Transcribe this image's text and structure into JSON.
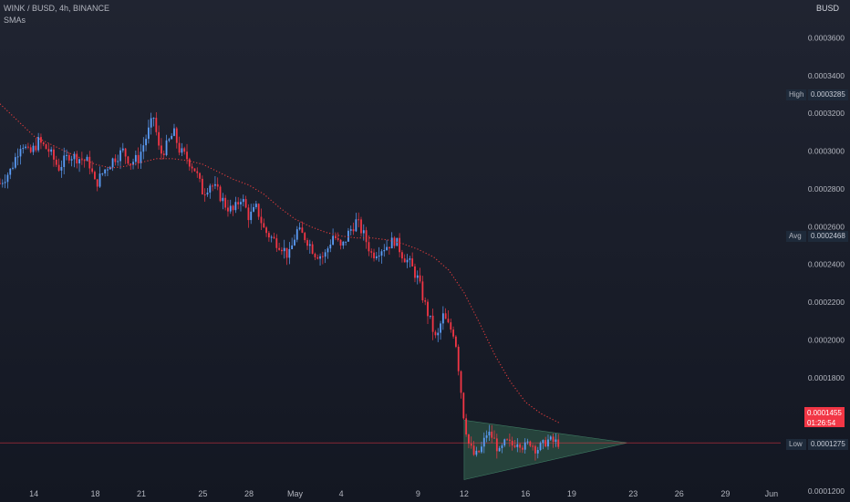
{
  "header": {
    "title": "WINK / BUSD, 4h, BINANCE",
    "indicator": "SMAs"
  },
  "currency": "BUSD",
  "colors": {
    "up": "#5b9cf6",
    "down": "#f23645",
    "sma": "#e03c3c",
    "triangle_fill": "#2f5a4a",
    "price_line": "#f23645",
    "axis_text": "#b2b5be"
  },
  "stats": {
    "high_label": "High",
    "high_value": "0.0003285",
    "avg_label": "Avg",
    "avg_value": "0.0002468",
    "low_label": "Low",
    "low_value": "0.0001275",
    "last_price": "0.0001455",
    "countdown": "01:26:54"
  },
  "chart_data": {
    "type": "candlestick",
    "y_ticks": [
      "0.0003600",
      "0.0003400",
      "0.0003200",
      "0.0003000",
      "0.0002800",
      "0.0002600",
      "0.0002400",
      "0.0002200",
      "0.0002000",
      "0.0001800",
      "0.0001600",
      "0.0001200"
    ],
    "ylim": [
      0.000119,
      0.00038
    ],
    "x_ticks": [
      {
        "label": "14",
        "x": 0
      },
      {
        "label": "18",
        "x": 4
      },
      {
        "label": "21",
        "x": 7
      },
      {
        "label": "25",
        "x": 11
      },
      {
        "label": "28",
        "x": 14
      },
      {
        "label": "May",
        "x": 17
      },
      {
        "label": "4",
        "x": 20
      },
      {
        "label": "9",
        "x": 25
      },
      {
        "label": "12",
        "x": 28
      },
      {
        "label": "16",
        "x": 32
      },
      {
        "label": "19",
        "x": 35
      },
      {
        "label": "23",
        "x": 39
      },
      {
        "label": "26",
        "x": 42
      },
      {
        "label": "29",
        "x": 45
      },
      {
        "label": "Jun",
        "x": 48
      }
    ],
    "xlim": [
      -2.2,
      48.6
    ],
    "close_path": [
      [
        -2.2,
        0.000283
      ],
      [
        -1.5,
        0.00029
      ],
      [
        -0.8,
        0.000305
      ],
      [
        -0.3,
        0.000298
      ],
      [
        0.3,
        0.000305
      ],
      [
        1,
        0.0003
      ],
      [
        1.6,
        0.000291
      ],
      [
        2.3,
        0.000298
      ],
      [
        3,
        0.000296
      ],
      [
        3.6,
        0.000294
      ],
      [
        4.0,
        0.000282
      ],
      [
        4.6,
        0.00029
      ],
      [
        5.2,
        0.000296
      ],
      [
        5.8,
        0.0003
      ],
      [
        6.3,
        0.000294
      ],
      [
        6.8,
        0.000296
      ],
      [
        7.3,
        0.000307
      ],
      [
        7.8,
        0.000318
      ],
      [
        8.2,
        0.000298
      ],
      [
        8.6,
        0.000302
      ],
      [
        9.1,
        0.00031
      ],
      [
        9.5,
        0.0003
      ],
      [
        10.0,
        0.000296
      ],
      [
        10.5,
        0.00029
      ],
      [
        11.0,
        0.000278
      ],
      [
        11.5,
        0.000283
      ],
      [
        12.0,
        0.000278
      ],
      [
        12.5,
        0.000271
      ],
      [
        13.0,
        0.000268
      ],
      [
        13.5,
        0.000276
      ],
      [
        14.0,
        0.000265
      ],
      [
        14.5,
        0.00027
      ],
      [
        15.0,
        0.000258
      ],
      [
        15.6,
        0.000253
      ],
      [
        16.1,
        0.00025
      ],
      [
        16.6,
        0.000244
      ],
      [
        17.1,
        0.000258
      ],
      [
        17.7,
        0.000254
      ],
      [
        18.3,
        0.000246
      ],
      [
        18.9,
        0.000244
      ],
      [
        19.5,
        0.000256
      ],
      [
        20.0,
        0.000248
      ],
      [
        20.5,
        0.000257
      ],
      [
        21.0,
        0.000263
      ],
      [
        21.5,
        0.000255
      ],
      [
        22.0,
        0.000245
      ],
      [
        22.5,
        0.000248
      ],
      [
        23.0,
        0.00025
      ],
      [
        23.5,
        0.000253
      ],
      [
        24.0,
        0.000245
      ],
      [
        24.5,
        0.00024
      ],
      [
        25.0,
        0.000232
      ],
      [
        25.4,
        0.00022
      ],
      [
        25.8,
        0.00021
      ],
      [
        26.2,
        0.000199
      ],
      [
        26.6,
        0.000213
      ],
      [
        27.0,
        0.000207
      ],
      [
        27.4,
        0.000203
      ],
      [
        27.8,
        0.000173
      ],
      [
        28.0,
        0.000158
      ],
      [
        28.3,
        0.000145
      ],
      [
        28.7,
        0.000138
      ],
      [
        29.1,
        0.000142
      ],
      [
        29.5,
        0.000151
      ],
      [
        29.9,
        0.000148
      ],
      [
        30.3,
        0.00014
      ],
      [
        30.7,
        0.000146
      ],
      [
        31.1,
        0.000144
      ],
      [
        31.5,
        0.000147
      ],
      [
        31.9,
        0.000143
      ],
      [
        32.3,
        0.000146
      ],
      [
        32.7,
        0.000142
      ],
      [
        33.1,
        0.000144
      ],
      [
        33.4,
        0.000147
      ],
      [
        33.8,
        0.000146
      ],
      [
        34.2,
        0.0001455
      ]
    ],
    "sma_path": [
      [
        -2.2,
        0.000325
      ],
      [
        0,
        0.000308
      ],
      [
        2,
        0.0003
      ],
      [
        4,
        0.000293
      ],
      [
        5,
        0.000291
      ],
      [
        6,
        0.000292
      ],
      [
        7,
        0.000294
      ],
      [
        8,
        0.000296
      ],
      [
        9,
        0.000296
      ],
      [
        10,
        0.000295
      ],
      [
        11,
        0.000293
      ],
      [
        12,
        0.000289
      ],
      [
        13,
        0.000285
      ],
      [
        14,
        0.000282
      ],
      [
        15,
        0.000277
      ],
      [
        16,
        0.00027
      ],
      [
        17,
        0.000264
      ],
      [
        18,
        0.00026
      ],
      [
        19,
        0.000257
      ],
      [
        20,
        0.000255
      ],
      [
        21,
        0.000254
      ],
      [
        22,
        0.000254
      ],
      [
        23,
        0.000253
      ],
      [
        24,
        0.000251
      ],
      [
        25,
        0.000248
      ],
      [
        26,
        0.000244
      ],
      [
        27,
        0.000237
      ],
      [
        28,
        0.000225
      ],
      [
        29,
        0.000209
      ],
      [
        30,
        0.000192
      ],
      [
        31,
        0.000178
      ],
      [
        32,
        0.000167
      ],
      [
        33,
        0.000161
      ],
      [
        34.2,
        0.000156
      ]
    ],
    "triangle": [
      [
        28.0,
        0.0001575
      ],
      [
        28.0,
        0.000126
      ],
      [
        38.6,
        0.0001455
      ]
    ],
    "current_price": 0.0001455
  }
}
